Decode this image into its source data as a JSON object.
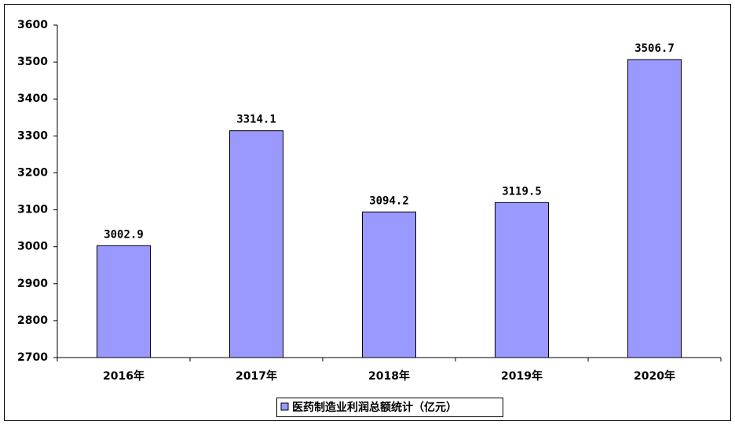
{
  "chart_data": {
    "type": "bar",
    "categories": [
      "2016年",
      "2017年",
      "2018年",
      "2019年",
      "2020年"
    ],
    "series": [
      {
        "name": "医药制造业利润总额统计（亿元）",
        "color": "#9999ff",
        "values": [
          3002.9,
          3314.1,
          3094.2,
          3119.5,
          3506.7
        ]
      }
    ],
    "ylim": [
      2700,
      3600
    ],
    "yticks": [
      2700,
      2800,
      2900,
      3000,
      3100,
      3200,
      3300,
      3400,
      3500,
      3600
    ],
    "grid": false,
    "legend": "bottom"
  }
}
